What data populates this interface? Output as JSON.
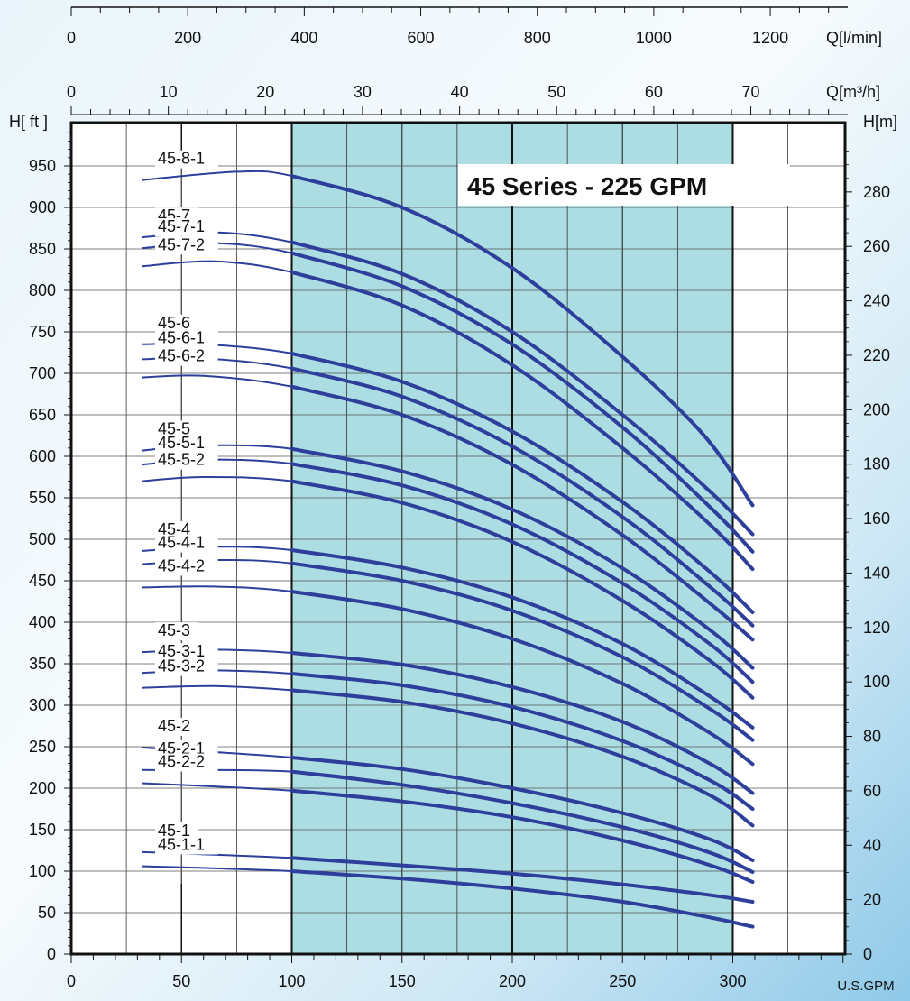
{
  "chart_data": {
    "type": "line",
    "title": "45 Series - 225 GPM",
    "xlabel": "U.S.GPM",
    "ylabel_left": "H[ ft ]",
    "ylabel_right": "H[m]",
    "top_axis_1_label": "Q[l/min]",
    "top_axis_2_label": "Q[m³/h]",
    "xlim": [
      0,
      350
    ],
    "ylim": [
      0,
      1000
    ],
    "x_ticks": [
      "0",
      "50",
      "100",
      "150",
      "200",
      "250",
      "300"
    ],
    "y_left_ticks": [
      "0",
      "50",
      "100",
      "150",
      "200",
      "250",
      "300",
      "350",
      "400",
      "450",
      "500",
      "550",
      "600",
      "650",
      "700",
      "750",
      "800",
      "850",
      "900",
      "950"
    ],
    "y_right_ticks": [
      "0",
      "20",
      "40",
      "60",
      "80",
      "100",
      "120",
      "140",
      "160",
      "180",
      "200",
      "220",
      "240",
      "260",
      "280"
    ],
    "top1_ticks": [
      "0",
      "200",
      "400",
      "600",
      "800",
      "1000",
      "1200"
    ],
    "top2_ticks": [
      "0",
      "10",
      "20",
      "30",
      "40",
      "50",
      "60",
      "70"
    ],
    "recommended_range_gpm": [
      100,
      300
    ],
    "series": [
      {
        "name": "45-8-1",
        "x": [
          32,
          75,
          100,
          150,
          200,
          250,
          287,
          309
        ],
        "y": [
          933,
          943,
          938,
          900,
          827,
          720,
          625,
          541
        ]
      },
      {
        "name": "45-7",
        "x": [
          32,
          65,
          100,
          150,
          200,
          250,
          290,
          309
        ],
        "y": [
          864,
          870,
          858,
          820,
          750,
          650,
          557,
          506
        ]
      },
      {
        "name": "45-7-1",
        "x": [
          32,
          65,
          100,
          150,
          200,
          250,
          290,
          309
        ],
        "y": [
          851,
          857,
          845,
          805,
          735,
          635,
          538,
          485
        ]
      },
      {
        "name": "45-7-2",
        "x": [
          32,
          65,
          100,
          150,
          200,
          250,
          290,
          309
        ],
        "y": [
          829,
          835,
          822,
          782,
          710,
          610,
          517,
          464
        ]
      },
      {
        "name": "45-6",
        "x": [
          32,
          60,
          100,
          150,
          200,
          250,
          290,
          309
        ],
        "y": [
          735,
          735,
          724,
          690,
          630,
          545,
          460,
          412
        ]
      },
      {
        "name": "45-6-1",
        "x": [
          32,
          60,
          100,
          150,
          200,
          250,
          290,
          309
        ],
        "y": [
          717,
          718,
          706,
          672,
          612,
          527,
          442,
          396
        ]
      },
      {
        "name": "45-6-2",
        "x": [
          32,
          60,
          100,
          150,
          200,
          250,
          290,
          309
        ],
        "y": [
          695,
          697,
          684,
          650,
          590,
          505,
          422,
          379
        ]
      },
      {
        "name": "45-5",
        "x": [
          32,
          60,
          100,
          150,
          200,
          250,
          290,
          309
        ],
        "y": [
          607,
          613,
          609,
          582,
          536,
          465,
          390,
          345
        ]
      },
      {
        "name": "45-5-1",
        "x": [
          32,
          60,
          100,
          150,
          200,
          250,
          290,
          309
        ],
        "y": [
          590,
          596,
          591,
          565,
          518,
          447,
          373,
          328
        ]
      },
      {
        "name": "45-5-2",
        "x": [
          32,
          60,
          100,
          150,
          200,
          250,
          290,
          309
        ],
        "y": [
          570,
          575,
          570,
          544,
          497,
          426,
          353,
          309
        ]
      },
      {
        "name": "45-4",
        "x": [
          32,
          65,
          100,
          150,
          200,
          250,
          290,
          309
        ],
        "y": [
          486,
          491,
          487,
          466,
          430,
          374,
          310,
          273
        ]
      },
      {
        "name": "45-4-1",
        "x": [
          32,
          65,
          100,
          150,
          200,
          250,
          290,
          309
        ],
        "y": [
          470,
          475,
          471,
          450,
          414,
          358,
          295,
          258
        ]
      },
      {
        "name": "45-4-2",
        "x": [
          32,
          65,
          100,
          150,
          200,
          250,
          290,
          309
        ],
        "y": [
          442,
          443,
          437,
          416,
          380,
          326,
          266,
          229
        ]
      },
      {
        "name": "45-3",
        "x": [
          32,
          65,
          100,
          150,
          200,
          250,
          290,
          309
        ],
        "y": [
          364,
          367,
          363,
          349,
          322,
          280,
          229,
          194
        ]
      },
      {
        "name": "45-3-1",
        "x": [
          32,
          65,
          100,
          150,
          200,
          250,
          290,
          309
        ],
        "y": [
          339,
          342,
          338,
          324,
          298,
          257,
          209,
          175
        ]
      },
      {
        "name": "45-3-2",
        "x": [
          32,
          65,
          100,
          150,
          200,
          250,
          290,
          309
        ],
        "y": [
          321,
          323,
          318,
          304,
          278,
          238,
          191,
          155
        ]
      },
      {
        "name": "45-2",
        "x": [
          32,
          100,
          150,
          200,
          250,
          290,
          309
        ],
        "y": [
          249,
          237,
          223,
          200,
          170,
          138,
          113
        ]
      },
      {
        "name": "45-2-1",
        "x": [
          32,
          100,
          150,
          200,
          250,
          290,
          309
        ],
        "y": [
          222,
          220,
          204,
          182,
          153,
          122,
          99
        ]
      },
      {
        "name": "45-2-2",
        "x": [
          32,
          100,
          150,
          200,
          250,
          290,
          309
        ],
        "y": [
          206,
          197,
          184,
          165,
          137,
          107,
          87
        ]
      },
      {
        "name": "45-1",
        "x": [
          32,
          100,
          150,
          200,
          250,
          290,
          309
        ],
        "y": [
          123,
          116,
          107,
          97,
          84,
          71,
          63
        ]
      },
      {
        "name": "45-1-1",
        "x": [
          32,
          100,
          150,
          200,
          250,
          290,
          309
        ],
        "y": [
          106,
          100,
          91,
          79,
          63,
          44,
          33
        ]
      }
    ]
  }
}
